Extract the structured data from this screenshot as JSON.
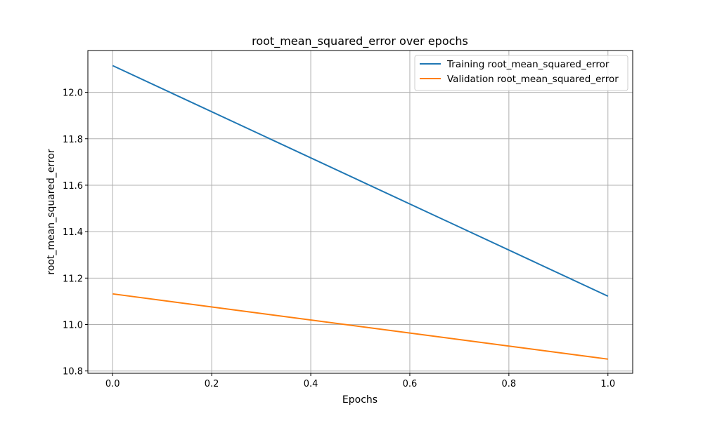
{
  "chart_data": {
    "type": "line",
    "title": "root_mean_squared_error over epochs",
    "xlabel": "Epochs",
    "ylabel": "root_mean_squared_error",
    "x": [
      0.0,
      1.0
    ],
    "xlim": [
      -0.05,
      1.05
    ],
    "ylim": [
      10.79,
      12.18
    ],
    "xticks": [
      0.0,
      0.2,
      0.4,
      0.6,
      0.8,
      1.0
    ],
    "xtick_labels": [
      "0.0",
      "0.2",
      "0.4",
      "0.6",
      "0.8",
      "1.0"
    ],
    "yticks": [
      10.8,
      11.0,
      11.2,
      11.4,
      11.6,
      11.8,
      12.0
    ],
    "ytick_labels": [
      "10.8",
      "11.0",
      "11.2",
      "11.4",
      "11.6",
      "11.8",
      "12.0"
    ],
    "grid": true,
    "legend_position": "top-right",
    "series": [
      {
        "name": "Training root_mean_squared_error",
        "values": [
          12.115,
          11.122
        ],
        "color": "#1f77b4"
      },
      {
        "name": "Validation root_mean_squared_error",
        "values": [
          11.132,
          10.851
        ],
        "color": "#ff7f0e"
      }
    ]
  }
}
